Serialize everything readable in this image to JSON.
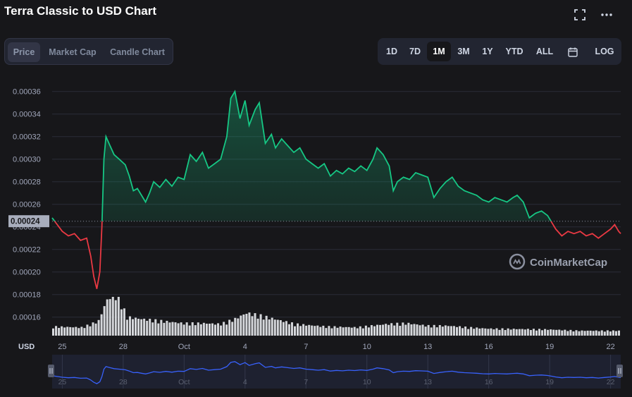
{
  "page": {
    "title": "Terra Classic to USD Chart",
    "expand_icon": "fullscreen-icon",
    "more_icon": "more-dots-icon"
  },
  "tabs": [
    {
      "label": "Price",
      "active": true
    },
    {
      "label": "Market Cap",
      "active": false
    },
    {
      "label": "Candle Chart",
      "active": false
    }
  ],
  "ranges": [
    {
      "label": "1D",
      "active": false
    },
    {
      "label": "7D",
      "active": false
    },
    {
      "label": "1M",
      "active": true
    },
    {
      "label": "3M",
      "active": false
    },
    {
      "label": "1Y",
      "active": false
    },
    {
      "label": "YTD",
      "active": false
    },
    {
      "label": "ALL",
      "active": false
    },
    {
      "label": "",
      "icon": "calendar-icon",
      "active": false
    },
    {
      "label": "LOG",
      "active": false
    }
  ],
  "colors": {
    "up": "#16c784",
    "down": "#ea3943",
    "volume": "#e6e8ec",
    "navigator": "#3861fb",
    "grid": "#2a2d38",
    "axis_text": "#a1a7bb"
  },
  "chart_data": {
    "type": "line",
    "title": "",
    "xlabel": "",
    "ylabel": "USD",
    "x_ticks": [
      "25",
      "28",
      "Oct",
      "4",
      "7",
      "10",
      "13",
      "16",
      "19",
      "22"
    ],
    "y_ticks": [
      "0.00036",
      "0.00034",
      "0.00032",
      "0.00030",
      "0.00028",
      "0.00026",
      "0.00024",
      "0.00022",
      "0.00020",
      "0.00018",
      "0.00016"
    ],
    "ylim": [
      0.000152,
      0.000372
    ],
    "baseline": 0.000245,
    "baseline_label": "0.00024",
    "watermark": "CoinMarketCap",
    "grid": true,
    "price": [
      {
        "t": 24.0,
        "v": 0.000248
      },
      {
        "t": 24.25,
        "v": 0.000242
      },
      {
        "t": 24.5,
        "v": 0.000236
      },
      {
        "t": 24.8,
        "v": 0.000232
      },
      {
        "t": 25.1,
        "v": 0.000234
      },
      {
        "t": 25.4,
        "v": 0.000228
      },
      {
        "t": 25.7,
        "v": 0.00023
      },
      {
        "t": 25.9,
        "v": 0.000214
      },
      {
        "t": 26.05,
        "v": 0.000196
      },
      {
        "t": 26.2,
        "v": 0.000185
      },
      {
        "t": 26.35,
        "v": 0.0002
      },
      {
        "t": 26.45,
        "v": 0.00024
      },
      {
        "t": 26.55,
        "v": 0.0003
      },
      {
        "t": 26.65,
        "v": 0.00032
      },
      {
        "t": 26.85,
        "v": 0.000312
      },
      {
        "t": 27.05,
        "v": 0.000304
      },
      {
        "t": 27.3,
        "v": 0.0003
      },
      {
        "t": 27.6,
        "v": 0.000295
      },
      {
        "t": 27.8,
        "v": 0.000285
      },
      {
        "t": 28.0,
        "v": 0.000272
      },
      {
        "t": 28.2,
        "v": 0.000274
      },
      {
        "t": 28.4,
        "v": 0.000268
      },
      {
        "t": 28.6,
        "v": 0.000262
      },
      {
        "t": 28.8,
        "v": 0.00027
      },
      {
        "t": 29.0,
        "v": 0.00028
      },
      {
        "t": 29.3,
        "v": 0.000275
      },
      {
        "t": 29.6,
        "v": 0.000282
      },
      {
        "t": 29.9,
        "v": 0.000276
      },
      {
        "t": 30.2,
        "v": 0.000284
      },
      {
        "t": 30.5,
        "v": 0.000282
      },
      {
        "t": 30.8,
        "v": 0.000304
      },
      {
        "t": 31.1,
        "v": 0.000298
      },
      {
        "t": 31.4,
        "v": 0.000306
      },
      {
        "t": 31.7,
        "v": 0.000292
      },
      {
        "t": 32.0,
        "v": 0.000296
      },
      {
        "t": 32.3,
        "v": 0.0003
      },
      {
        "t": 32.6,
        "v": 0.00032
      },
      {
        "t": 32.8,
        "v": 0.000354
      },
      {
        "t": 33.0,
        "v": 0.00036
      },
      {
        "t": 33.25,
        "v": 0.000336
      },
      {
        "t": 33.5,
        "v": 0.000352
      },
      {
        "t": 33.7,
        "v": 0.00033
      },
      {
        "t": 34.0,
        "v": 0.000344
      },
      {
        "t": 34.2,
        "v": 0.00035
      },
      {
        "t": 34.5,
        "v": 0.000314
      },
      {
        "t": 34.8,
        "v": 0.000322
      },
      {
        "t": 35.0,
        "v": 0.00031
      },
      {
        "t": 35.3,
        "v": 0.000318
      },
      {
        "t": 35.6,
        "v": 0.000312
      },
      {
        "t": 35.9,
        "v": 0.000306
      },
      {
        "t": 36.2,
        "v": 0.00031
      },
      {
        "t": 36.5,
        "v": 0.0003
      },
      {
        "t": 36.8,
        "v": 0.000296
      },
      {
        "t": 37.1,
        "v": 0.000292
      },
      {
        "t": 37.4,
        "v": 0.000296
      },
      {
        "t": 37.7,
        "v": 0.000285
      },
      {
        "t": 38.0,
        "v": 0.00029
      },
      {
        "t": 38.3,
        "v": 0.000287
      },
      {
        "t": 38.6,
        "v": 0.000292
      },
      {
        "t": 38.9,
        "v": 0.000289
      },
      {
        "t": 39.2,
        "v": 0.000294
      },
      {
        "t": 39.5,
        "v": 0.00029
      },
      {
        "t": 39.8,
        "v": 0.0003
      },
      {
        "t": 40.0,
        "v": 0.00031
      },
      {
        "t": 40.3,
        "v": 0.000304
      },
      {
        "t": 40.6,
        "v": 0.000294
      },
      {
        "t": 40.8,
        "v": 0.000272
      },
      {
        "t": 41.0,
        "v": 0.00028
      },
      {
        "t": 41.3,
        "v": 0.000284
      },
      {
        "t": 41.6,
        "v": 0.000282
      },
      {
        "t": 41.9,
        "v": 0.000288
      },
      {
        "t": 42.2,
        "v": 0.000286
      },
      {
        "t": 42.5,
        "v": 0.000284
      },
      {
        "t": 42.8,
        "v": 0.000266
      },
      {
        "t": 43.1,
        "v": 0.000274
      },
      {
        "t": 43.4,
        "v": 0.00028
      },
      {
        "t": 43.7,
        "v": 0.000284
      },
      {
        "t": 44.0,
        "v": 0.000276
      },
      {
        "t": 44.3,
        "v": 0.000272
      },
      {
        "t": 44.6,
        "v": 0.00027
      },
      {
        "t": 44.9,
        "v": 0.000268
      },
      {
        "t": 45.2,
        "v": 0.000264
      },
      {
        "t": 45.5,
        "v": 0.000262
      },
      {
        "t": 45.8,
        "v": 0.000266
      },
      {
        "t": 46.1,
        "v": 0.000264
      },
      {
        "t": 46.4,
        "v": 0.000262
      },
      {
        "t": 46.7,
        "v": 0.000266
      },
      {
        "t": 46.9,
        "v": 0.000268
      },
      {
        "t": 47.2,
        "v": 0.000262
      },
      {
        "t": 47.5,
        "v": 0.000248
      },
      {
        "t": 47.8,
        "v": 0.000252
      },
      {
        "t": 48.1,
        "v": 0.000254
      },
      {
        "t": 48.4,
        "v": 0.00025
      },
      {
        "t": 48.6,
        "v": 0.000244
      },
      {
        "t": 48.8,
        "v": 0.000238
      },
      {
        "t": 49.1,
        "v": 0.000232
      },
      {
        "t": 49.4,
        "v": 0.000236
      },
      {
        "t": 49.7,
        "v": 0.000234
      },
      {
        "t": 50.0,
        "v": 0.000236
      },
      {
        "t": 50.3,
        "v": 0.000232
      },
      {
        "t": 50.6,
        "v": 0.000234
      },
      {
        "t": 50.9,
        "v": 0.00023
      },
      {
        "t": 51.2,
        "v": 0.000234
      },
      {
        "t": 51.5,
        "v": 0.000238
      },
      {
        "t": 51.7,
        "v": 0.000242
      },
      {
        "t": 51.9,
        "v": 0.000236
      },
      {
        "t": 52.0,
        "v": 0.000234
      }
    ],
    "volume": [
      {
        "t": 24.0,
        "v": 0.22
      },
      {
        "t": 25.5,
        "v": 0.2
      },
      {
        "t": 26.3,
        "v": 0.35
      },
      {
        "t": 26.7,
        "v": 0.85
      },
      {
        "t": 27.0,
        "v": 1.0
      },
      {
        "t": 27.3,
        "v": 0.95
      },
      {
        "t": 27.7,
        "v": 0.45
      },
      {
        "t": 28.5,
        "v": 0.4
      },
      {
        "t": 29.5,
        "v": 0.35
      },
      {
        "t": 30.5,
        "v": 0.3
      },
      {
        "t": 31.5,
        "v": 0.3
      },
      {
        "t": 32.3,
        "v": 0.28
      },
      {
        "t": 33.0,
        "v": 0.4
      },
      {
        "t": 33.6,
        "v": 0.55
      },
      {
        "t": 34.3,
        "v": 0.48
      },
      {
        "t": 35.0,
        "v": 0.4
      },
      {
        "t": 36.0,
        "v": 0.28
      },
      {
        "t": 37.5,
        "v": 0.22
      },
      {
        "t": 39.0,
        "v": 0.2
      },
      {
        "t": 40.5,
        "v": 0.28
      },
      {
        "t": 41.5,
        "v": 0.3
      },
      {
        "t": 42.5,
        "v": 0.24
      },
      {
        "t": 43.5,
        "v": 0.24
      },
      {
        "t": 44.5,
        "v": 0.2
      },
      {
        "t": 45.5,
        "v": 0.17
      },
      {
        "t": 47.0,
        "v": 0.16
      },
      {
        "t": 48.5,
        "v": 0.15
      },
      {
        "t": 50.0,
        "v": 0.12
      },
      {
        "t": 51.5,
        "v": 0.12
      },
      {
        "t": 52.0,
        "v": 0.12
      }
    ]
  }
}
